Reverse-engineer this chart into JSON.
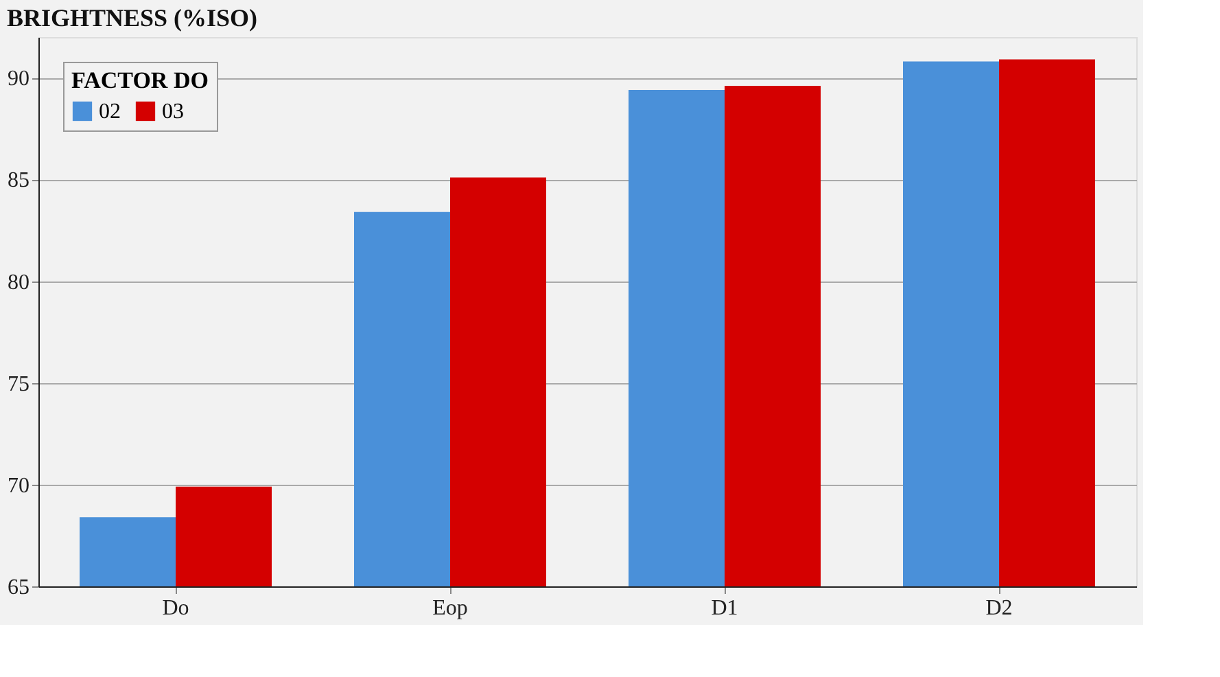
{
  "chart_data": {
    "type": "bar",
    "title": "BRIGHTNESS (%ISO)",
    "legend_title": "FACTOR DO",
    "categories": [
      "Do",
      "Eop",
      "D1",
      "D2"
    ],
    "series": [
      {
        "name": "02",
        "color": "#4a90d9",
        "values": [
          68.4,
          83.4,
          89.4,
          90.8
        ]
      },
      {
        "name": "03",
        "color": "#d40000",
        "values": [
          69.9,
          85.1,
          89.6,
          90.9
        ]
      }
    ],
    "ylim": [
      65,
      92
    ],
    "yticks": [
      65,
      70,
      75,
      80,
      85,
      90
    ],
    "grid": "y",
    "legend": "top left"
  }
}
